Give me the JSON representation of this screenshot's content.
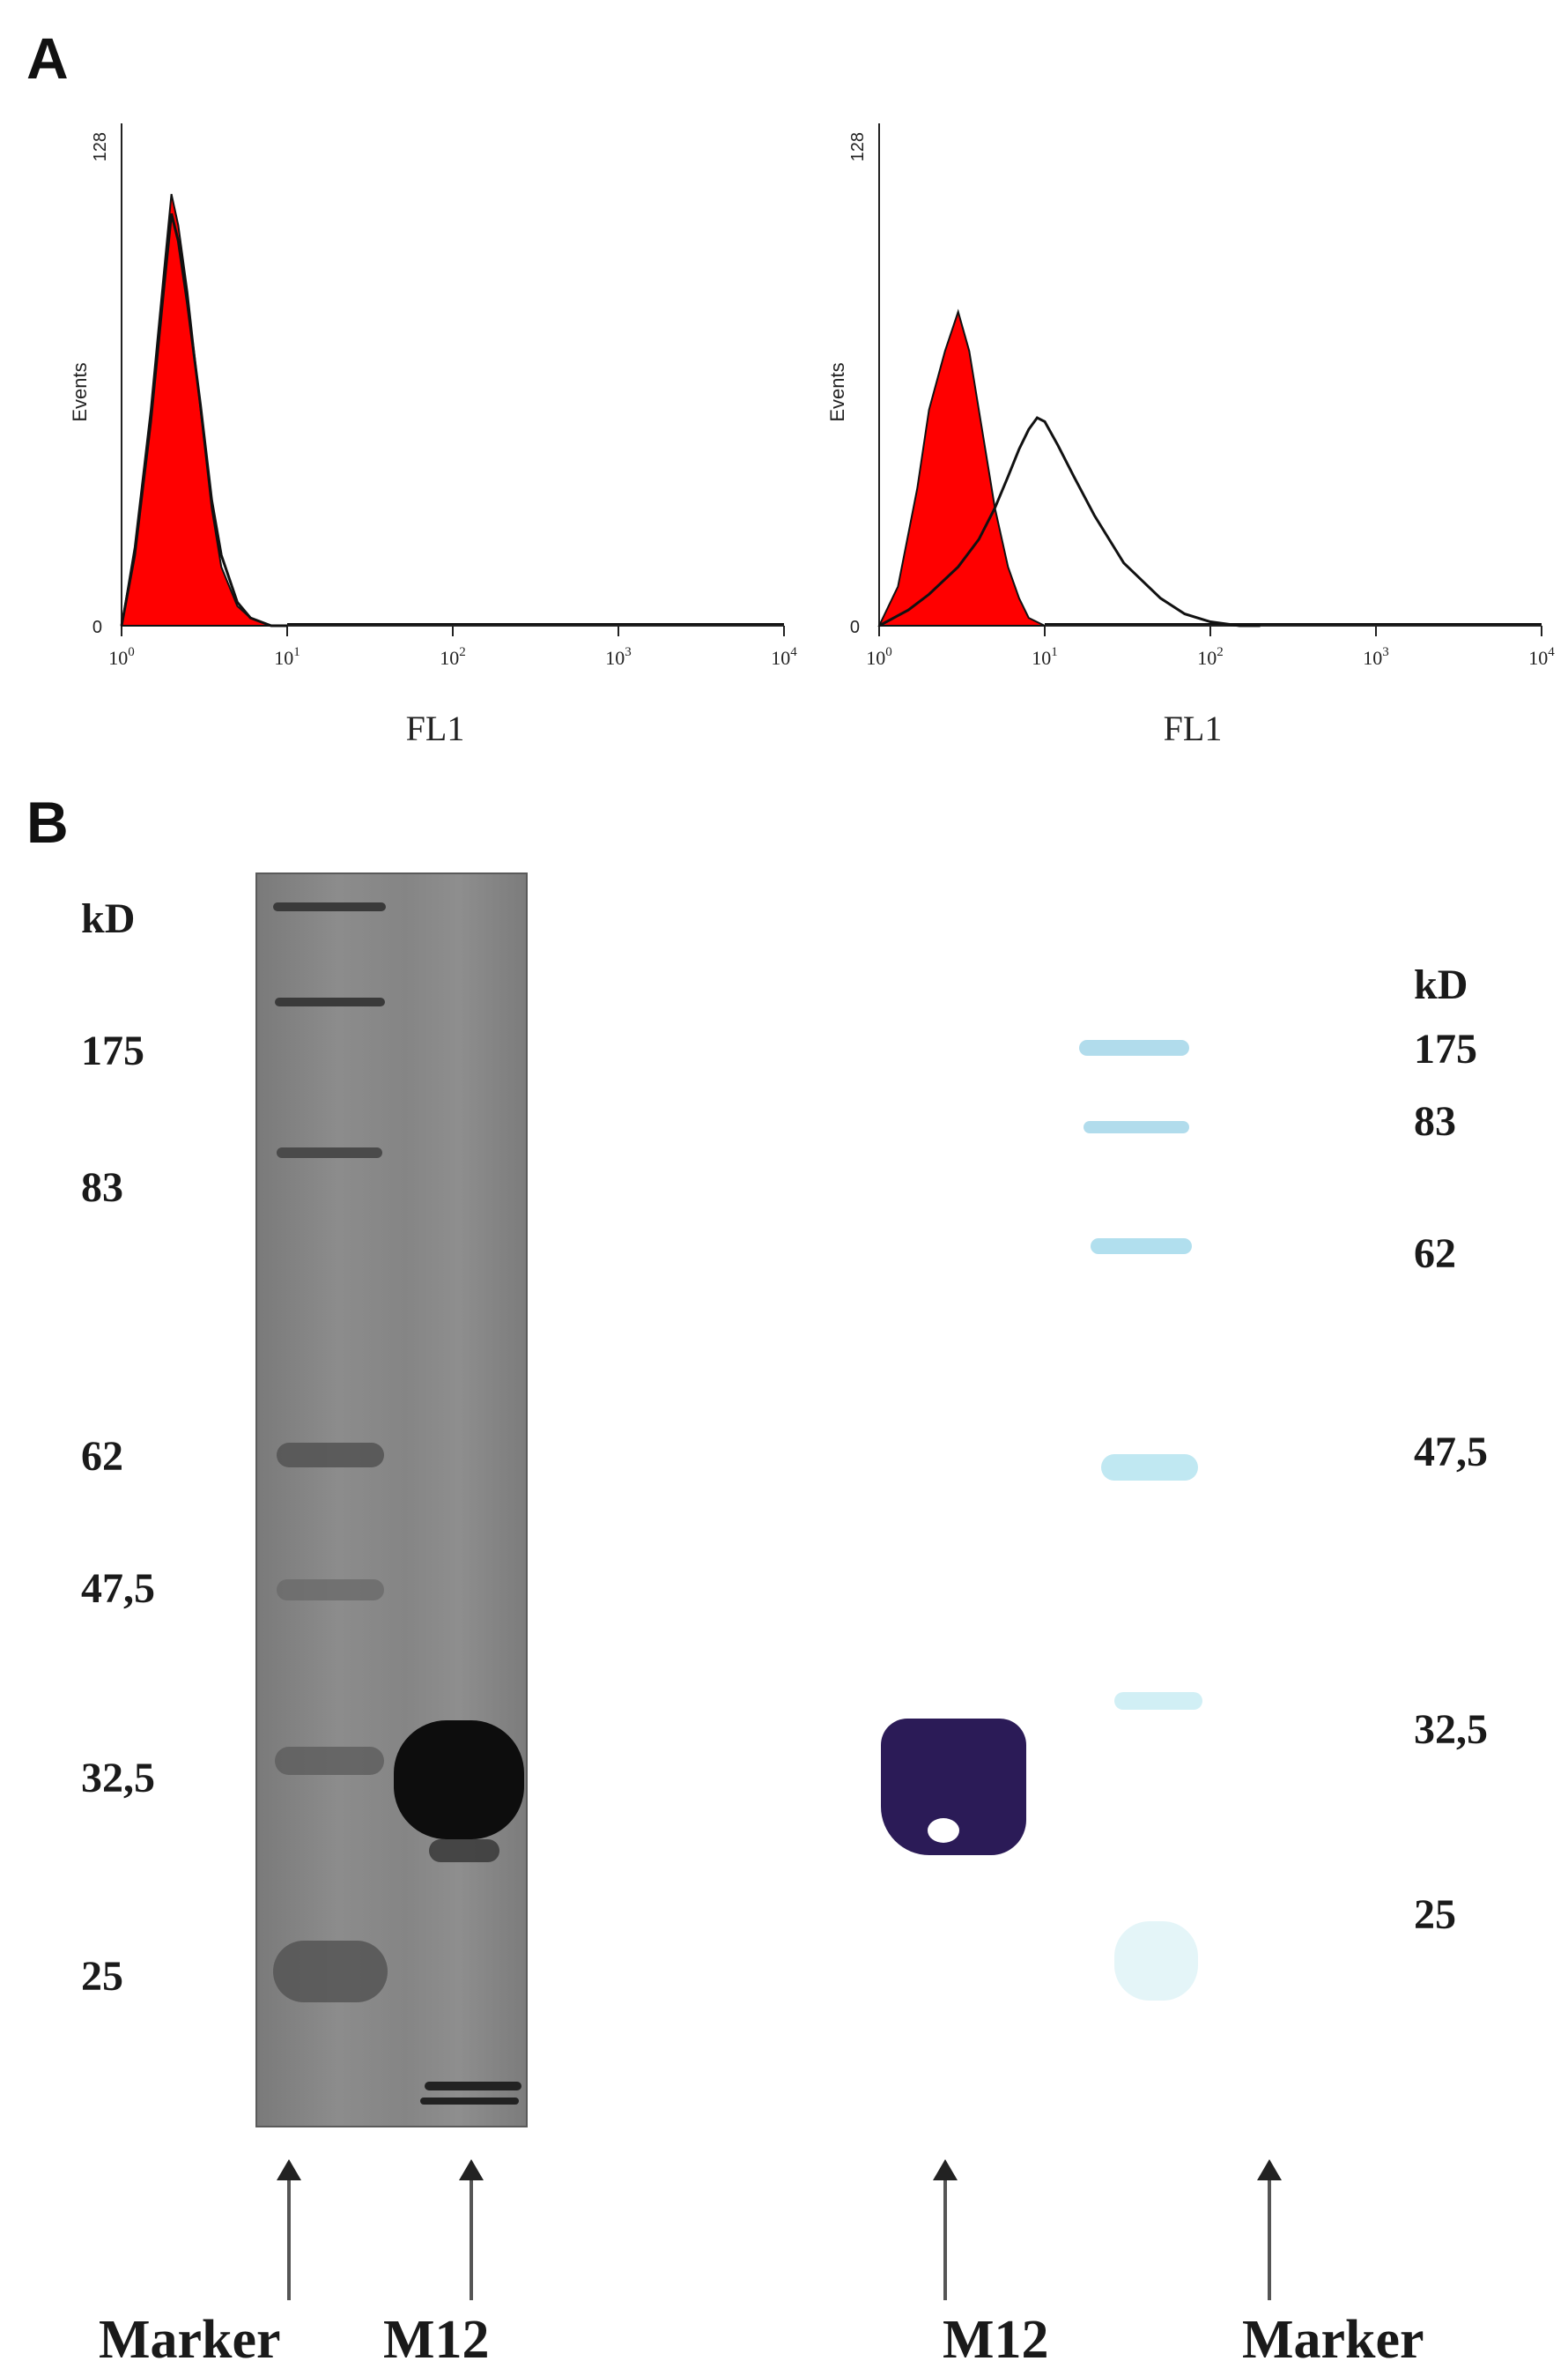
{
  "panel_a": {
    "label": "A",
    "histograms": [
      {
        "ylabel": "Events",
        "xlabel": "FL1",
        "y_max_label": "128",
        "y_min_label": "0",
        "x_ticks": [
          "10",
          "10",
          "10",
          "10",
          "10"
        ],
        "x_exps": [
          "0",
          "1",
          "2",
          "3",
          "4"
        ]
      },
      {
        "ylabel": "Events",
        "xlabel": "FL1",
        "y_max_label": "128",
        "y_min_label": "0",
        "x_ticks": [
          "10",
          "10",
          "10",
          "10",
          "10"
        ],
        "x_exps": [
          "0",
          "1",
          "2",
          "3",
          "4"
        ]
      }
    ]
  },
  "panel_b": {
    "label": "B",
    "left_kd": [
      "kD",
      "175",
      "83",
      "62",
      "47,5",
      "32,5",
      "25"
    ],
    "right_kd": [
      "kD",
      "175",
      "83",
      "62",
      "47,5",
      "32,5",
      "25"
    ],
    "lane_labels": [
      "Marker",
      "M12",
      "M12",
      "Marker"
    ]
  },
  "colors": {
    "filled_histogram": "#ff0000",
    "gel_background": "#8a8a8a",
    "blot_band": "#2b1b57",
    "blot_marker": "#9fd6ea"
  },
  "chart_data": [
    {
      "type": "area",
      "xlabel": "FL1",
      "ylabel": "Events",
      "x_scale": "log",
      "xlim": [
        1,
        10000
      ],
      "ylim": [
        0,
        128
      ],
      "series": [
        {
          "x": [
            1,
            1.2,
            1.5,
            1.8,
            2.0,
            2.2,
            2.5,
            3.0,
            3.5,
            4.0,
            5.0,
            6.0,
            8.0,
            10
          ],
          "values": [
            0,
            20,
            55,
            90,
            110,
            102,
            85,
            55,
            30,
            15,
            5,
            2,
            0,
            0
          ]
        },
        {
          "x": [
            1,
            1.2,
            1.5,
            1.8,
            2.0,
            2.2,
            2.5,
            3.0,
            3.5,
            4.0,
            5.0,
            6.0,
            8.0,
            10
          ],
          "values": [
            0,
            18,
            52,
            86,
            105,
            98,
            82,
            56,
            32,
            18,
            6,
            2,
            0,
            0
          ]
        }
      ]
    },
    {
      "type": "area",
      "xlabel": "FL1",
      "ylabel": "Events",
      "x_scale": "log",
      "xlim": [
        1,
        10000
      ],
      "ylim": [
        0,
        128
      ],
      "series": [
        {
          "x": [
            1,
            1.3,
            1.7,
            2.0,
            2.5,
            3.0,
            3.5,
            4.0,
            5.0,
            6.0,
            7.0,
            8.0,
            10
          ],
          "values": [
            0,
            10,
            35,
            55,
            70,
            80,
            70,
            55,
            30,
            15,
            7,
            2,
            0
          ]
        },
        {
          "x": [
            1,
            1.5,
            2,
            3,
            4,
            5,
            6,
            7,
            8,
            9,
            10,
            12,
            15,
            20,
            30,
            50,
            70,
            100,
            150,
            200
          ],
          "values": [
            0,
            4,
            8,
            15,
            22,
            30,
            38,
            45,
            50,
            53,
            52,
            46,
            38,
            28,
            16,
            7,
            3,
            1,
            0,
            0
          ]
        }
      ]
    }
  ]
}
